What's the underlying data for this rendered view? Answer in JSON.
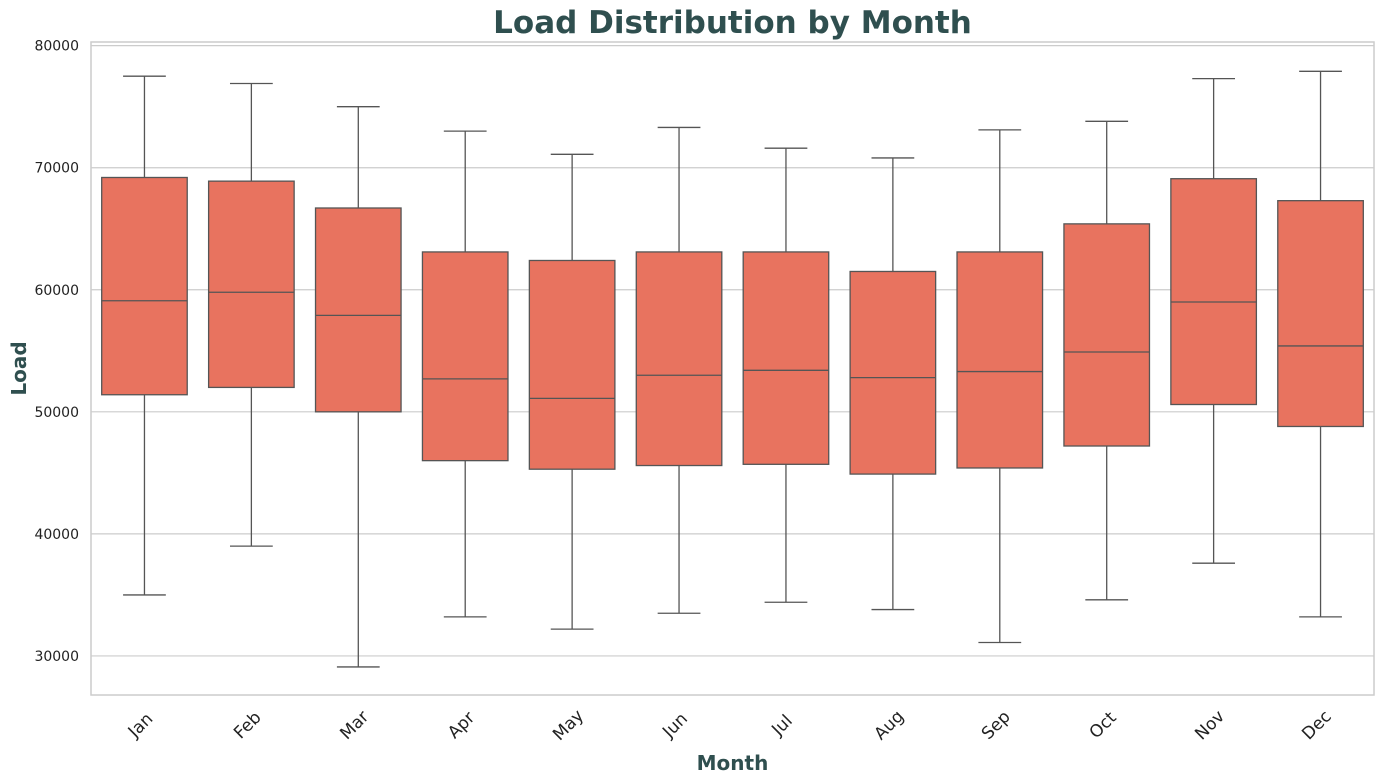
{
  "chart_data": {
    "type": "box",
    "title": "Load Distribution by Month",
    "xlabel": "Month",
    "ylabel": "Load",
    "ylim": [
      26800,
      80300
    ],
    "yticks": [
      30000,
      40000,
      50000,
      60000,
      70000,
      80000
    ],
    "ytick_labels": [
      "30000",
      "40000",
      "50000",
      "60000",
      "70000",
      "80000"
    ],
    "grid": true,
    "categories": [
      "Jan",
      "Feb",
      "Mar",
      "Apr",
      "May",
      "Jun",
      "Jul",
      "Aug",
      "Sep",
      "Oct",
      "Nov",
      "Dec"
    ],
    "boxes": [
      {
        "whislo": 35000,
        "q1": 51400,
        "med": 59100,
        "q3": 69200,
        "whishi": 77500
      },
      {
        "whislo": 39000,
        "q1": 52000,
        "med": 59800,
        "q3": 68900,
        "whishi": 76900
      },
      {
        "whislo": 29100,
        "q1": 50000,
        "med": 57900,
        "q3": 66700,
        "whishi": 75000
      },
      {
        "whislo": 33200,
        "q1": 46000,
        "med": 52700,
        "q3": 63100,
        "whishi": 73000
      },
      {
        "whislo": 32200,
        "q1": 45300,
        "med": 51100,
        "q3": 62400,
        "whishi": 71100
      },
      {
        "whislo": 33500,
        "q1": 45600,
        "med": 53000,
        "q3": 63100,
        "whishi": 73300
      },
      {
        "whislo": 34400,
        "q1": 45700,
        "med": 53400,
        "q3": 63100,
        "whishi": 71600
      },
      {
        "whislo": 33800,
        "q1": 44900,
        "med": 52800,
        "q3": 61500,
        "whishi": 70800
      },
      {
        "whislo": 31100,
        "q1": 45400,
        "med": 53300,
        "q3": 63100,
        "whishi": 73100
      },
      {
        "whislo": 34600,
        "q1": 47200,
        "med": 54900,
        "q3": 65400,
        "whishi": 73800
      },
      {
        "whislo": 37600,
        "q1": 50600,
        "med": 59000,
        "q3": 69100,
        "whishi": 77300
      },
      {
        "whislo": 33200,
        "q1": 48800,
        "med": 55400,
        "q3": 67300,
        "whishi": 77900
      }
    ],
    "colors": {
      "box_fill": "#e8735f",
      "line": "#555555",
      "grid": "#cccccc",
      "title": "#2f4f4f"
    }
  }
}
